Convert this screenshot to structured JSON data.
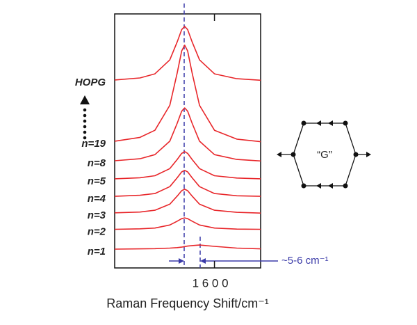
{
  "chart_data": {
    "type": "line",
    "x_label": "Raman Frequency Shift/cm⁻¹",
    "annotation": "~5-6 cm⁻¹",
    "inset_label": "“G”",
    "xlim": [
      1533,
      1631
    ],
    "xticks": [
      {
        "value": 1600,
        "label": "1 6 0 0"
      }
    ],
    "ylim": [
      0,
      100
    ],
    "x": [
      1533,
      1550,
      1560,
      1570,
      1575,
      1578,
      1580,
      1582,
      1585,
      1590,
      1600,
      1615,
      1631
    ],
    "series": [
      {
        "name": "n=1",
        "color": "#e8262a",
        "values": [
          7.4,
          7.5,
          7.6,
          7.8,
          8.0,
          8.2,
          8.4,
          8.6,
          8.8,
          9.0,
          8.5,
          7.8,
          7.5
        ]
      },
      {
        "name": "n=2",
        "color": "#e8262a",
        "values": [
          15.2,
          15.4,
          15.7,
          16.9,
          18.4,
          19.4,
          19.7,
          19.4,
          18.4,
          16.9,
          15.7,
          15.3,
          15.2
        ]
      },
      {
        "name": "n=3",
        "color": "#e8262a",
        "values": [
          21.7,
          22.0,
          22.7,
          25.1,
          28.3,
          30.4,
          31.0,
          30.4,
          28.3,
          25.1,
          22.7,
          21.9,
          21.6
        ]
      },
      {
        "name": "n=4",
        "color": "#e8262a",
        "values": [
          28.2,
          28.6,
          29.3,
          32.0,
          35.5,
          37.8,
          38.4,
          37.8,
          35.5,
          32.0,
          29.3,
          28.4,
          28.2
        ]
      },
      {
        "name": "n=5",
        "color": "#e8262a",
        "values": [
          35.1,
          35.5,
          36.3,
          39.1,
          42.7,
          45.1,
          45.8,
          45.1,
          42.7,
          39.1,
          36.3,
          35.4,
          35.1
        ]
      },
      {
        "name": "n=8",
        "color": "#e8262a",
        "values": [
          42.2,
          43.0,
          44.6,
          49.9,
          57.0,
          61.7,
          63.0,
          61.7,
          57.0,
          49.9,
          44.6,
          42.7,
          42.1
        ]
      },
      {
        "name": "n=19",
        "color": "#e8262a",
        "values": [
          49.9,
          51.4,
          54.2,
          64.0,
          76.8,
          85.4,
          87.7,
          85.4,
          76.8,
          64.0,
          54.2,
          50.7,
          49.7
        ]
      },
      {
        "name": "HOPG",
        "color": "#e8262a",
        "values": [
          74.0,
          74.8,
          76.4,
          81.9,
          89.0,
          93.8,
          95.1,
          93.8,
          89.0,
          81.9,
          76.4,
          74.5,
          73.9
        ]
      }
    ]
  }
}
